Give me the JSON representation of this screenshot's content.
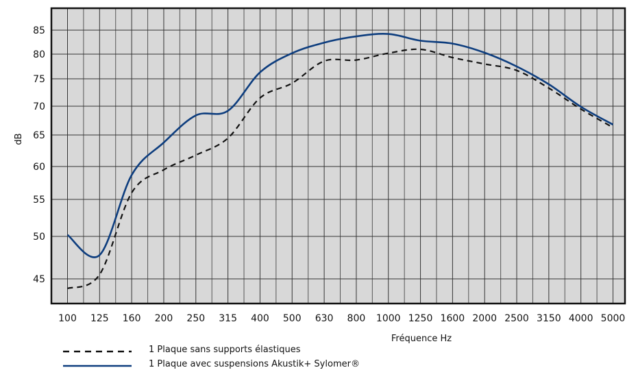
{
  "chart_data": {
    "type": "line",
    "title": "",
    "xlabel": "Fréquence Hz",
    "ylabel": "dB",
    "categories": [
      "100",
      "125",
      "160",
      "200",
      "250",
      "315",
      "400",
      "500",
      "630",
      "800",
      "1000",
      "1250",
      "1600",
      "2000",
      "2500",
      "3150",
      "4000",
      "5000"
    ],
    "y_ticks": [
      45,
      50,
      55,
      60,
      65,
      70,
      75,
      80,
      85
    ],
    "grid": true,
    "legend_position": "bottom-left",
    "series": [
      {
        "name": "1 Plaque sans supports élastiques",
        "style": "dashed",
        "color": "#111111",
        "values": [
          44.3,
          45.5,
          56,
          59.5,
          61.8,
          64.5,
          71.5,
          74.2,
          78.6,
          78.8,
          80.2,
          81,
          79.3,
          78,
          76.7,
          73.3,
          69.5,
          66.3
        ]
      },
      {
        "name": "1 Plaque avec suspensions Akustik+ Sylomer®",
        "style": "solid",
        "color": "#0d3d7e",
        "values": [
          50.2,
          47.8,
          58.7,
          63.8,
          68.4,
          69.2,
          76.3,
          80.2,
          82.4,
          83.7,
          84.2,
          82.8,
          82.2,
          80.3,
          77.5,
          74,
          69.9,
          66.8
        ]
      }
    ]
  }
}
